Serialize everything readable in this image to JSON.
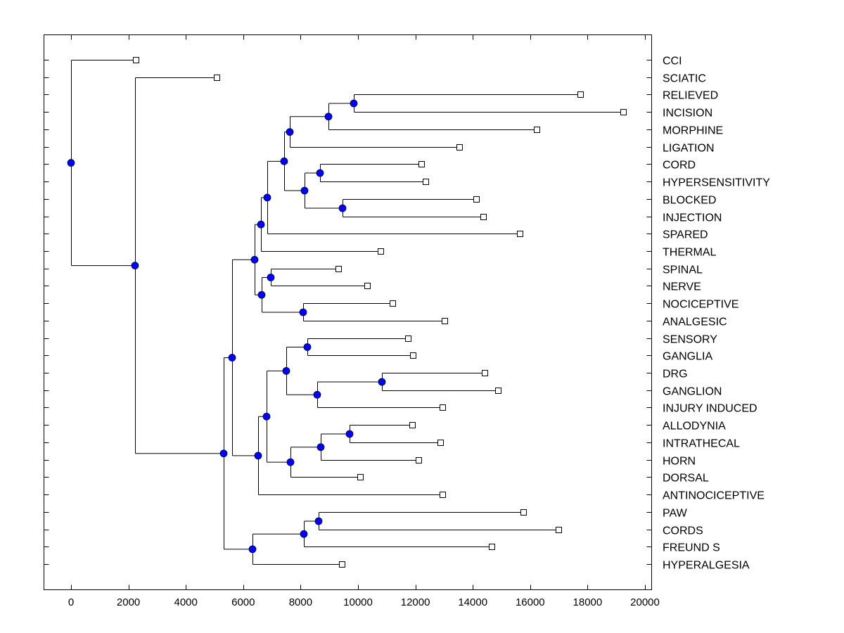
{
  "chart_data": {
    "type": "dendrogram",
    "title": "",
    "xlabel": "",
    "ylabel": "",
    "xlim": [
      -900,
      20100
    ],
    "x_ticks": [
      0,
      2000,
      4000,
      6000,
      8000,
      10000,
      12000,
      14000,
      16000,
      18000,
      20000
    ],
    "x_tick_labels": [
      "0",
      "2000",
      "4000",
      "6000",
      "8000",
      "10000",
      "12000",
      "14000",
      "16000",
      "18000",
      "20000"
    ],
    "grid": false,
    "leaves": [
      {
        "label": "CCI",
        "value": 2255
      },
      {
        "label": "SCIATIC",
        "value": 5074
      },
      {
        "label": "RELIEVED",
        "value": 17745
      },
      {
        "label": "INCISION",
        "value": 19240
      },
      {
        "label": "MORPHINE",
        "value": 16225
      },
      {
        "label": "LIGATION",
        "value": 13530
      },
      {
        "label": "CORD",
        "value": 12205
      },
      {
        "label": "HYPERSENSITIVITY",
        "value": 12353
      },
      {
        "label": "BLOCKED",
        "value": 14118
      },
      {
        "label": "INJECTION",
        "value": 14363
      },
      {
        "label": "SPARED",
        "value": 15637
      },
      {
        "label": "THERMAL",
        "value": 10784
      },
      {
        "label": "SPINAL",
        "value": 9314
      },
      {
        "label": "NERVE",
        "value": 10319
      },
      {
        "label": "NOCICEPTIVE",
        "value": 11201
      },
      {
        "label": "ANALGESIC",
        "value": 13015
      },
      {
        "label": "SENSORY",
        "value": 11740
      },
      {
        "label": "GANGLIA",
        "value": 11912
      },
      {
        "label": "DRG",
        "value": 14412
      },
      {
        "label": "GANGLION",
        "value": 14877
      },
      {
        "label": "INJURY INDUCED",
        "value": 12941
      },
      {
        "label": "ALLODYNIA",
        "value": 11887
      },
      {
        "label": "INTRATHECAL",
        "value": 12868
      },
      {
        "label": "HORN",
        "value": 12108
      },
      {
        "label": "DORSAL",
        "value": 10074
      },
      {
        "label": "ANTINOCICEPTIVE",
        "value": 12941
      },
      {
        "label": "PAW",
        "value": 15760
      },
      {
        "label": "CORDS",
        "value": 16985
      },
      {
        "label": "FREUND S",
        "value": 14657
      },
      {
        "label": "HYPERALGESIA",
        "value": 9436
      }
    ],
    "nodes": [
      {
        "id": "n1",
        "value": 9853,
        "children": [
          "RELIEVED",
          "INCISION"
        ]
      },
      {
        "id": "n2",
        "value": 8971,
        "children": [
          "n1",
          "MORPHINE"
        ]
      },
      {
        "id": "n3",
        "value": 7623,
        "children": [
          "n2",
          "LIGATION"
        ]
      },
      {
        "id": "n4",
        "value": 8677,
        "children": [
          "CORD",
          "HYPERSENSITIVITY"
        ]
      },
      {
        "id": "n5",
        "value": 9461,
        "children": [
          "BLOCKED",
          "INJECTION"
        ]
      },
      {
        "id": "n6",
        "value": 8137,
        "children": [
          "n4",
          "n5"
        ]
      },
      {
        "id": "n7",
        "value": 7426,
        "children": [
          "n3",
          "n6"
        ]
      },
      {
        "id": "n8",
        "value": 6838,
        "children": [
          "n7",
          "SPARED"
        ]
      },
      {
        "id": "n9",
        "value": 6618,
        "children": [
          "n8",
          "THERMAL"
        ]
      },
      {
        "id": "n10",
        "value": 6961,
        "children": [
          "SPINAL",
          "NERVE"
        ]
      },
      {
        "id": "n11",
        "value": 8088,
        "children": [
          "NOCICEPTIVE",
          "ANALGESIC"
        ]
      },
      {
        "id": "n12",
        "value": 6642,
        "children": [
          "n10",
          "n11"
        ]
      },
      {
        "id": "n13",
        "value": 6397,
        "children": [
          "n9",
          "n12"
        ]
      },
      {
        "id": "n14",
        "value": 8235,
        "children": [
          "SENSORY",
          "GANGLIA"
        ]
      },
      {
        "id": "n15",
        "value": 10833,
        "children": [
          "DRG",
          "GANGLION"
        ]
      },
      {
        "id": "n16",
        "value": 8578,
        "children": [
          "n15",
          "INJURY INDUCED"
        ]
      },
      {
        "id": "n17",
        "value": 7500,
        "children": [
          "n14",
          "n16"
        ]
      },
      {
        "id": "n18",
        "value": 9706,
        "children": [
          "ALLODYNIA",
          "INTRATHECAL"
        ]
      },
      {
        "id": "n19",
        "value": 8701,
        "children": [
          "n18",
          "HORN"
        ]
      },
      {
        "id": "n20",
        "value": 7647,
        "children": [
          "n19",
          "DORSAL"
        ]
      },
      {
        "id": "n21",
        "value": 6814,
        "children": [
          "n17",
          "n20"
        ]
      },
      {
        "id": "n22",
        "value": 6520,
        "children": [
          "n21",
          "ANTINOCICEPTIVE"
        ]
      },
      {
        "id": "n23",
        "value": 5613,
        "children": [
          "n13",
          "n22"
        ]
      },
      {
        "id": "n24",
        "value": 8627,
        "children": [
          "PAW",
          "CORDS"
        ]
      },
      {
        "id": "n25",
        "value": 8113,
        "children": [
          "n24",
          "FREUND S"
        ]
      },
      {
        "id": "n26",
        "value": 6324,
        "children": [
          "n25",
          "HYPERALGESIA"
        ]
      },
      {
        "id": "n27",
        "value": 5319,
        "children": [
          "n23",
          "n26"
        ]
      },
      {
        "id": "n28",
        "value": 2230,
        "children": [
          "SCIATIC",
          "n27"
        ]
      },
      {
        "id": "n29",
        "value": 0,
        "children": [
          "CCI",
          "n28"
        ]
      }
    ],
    "colors": {
      "node_fill": "#0000ff",
      "leaf_fill": "#ffffff",
      "line": "#000000"
    }
  }
}
